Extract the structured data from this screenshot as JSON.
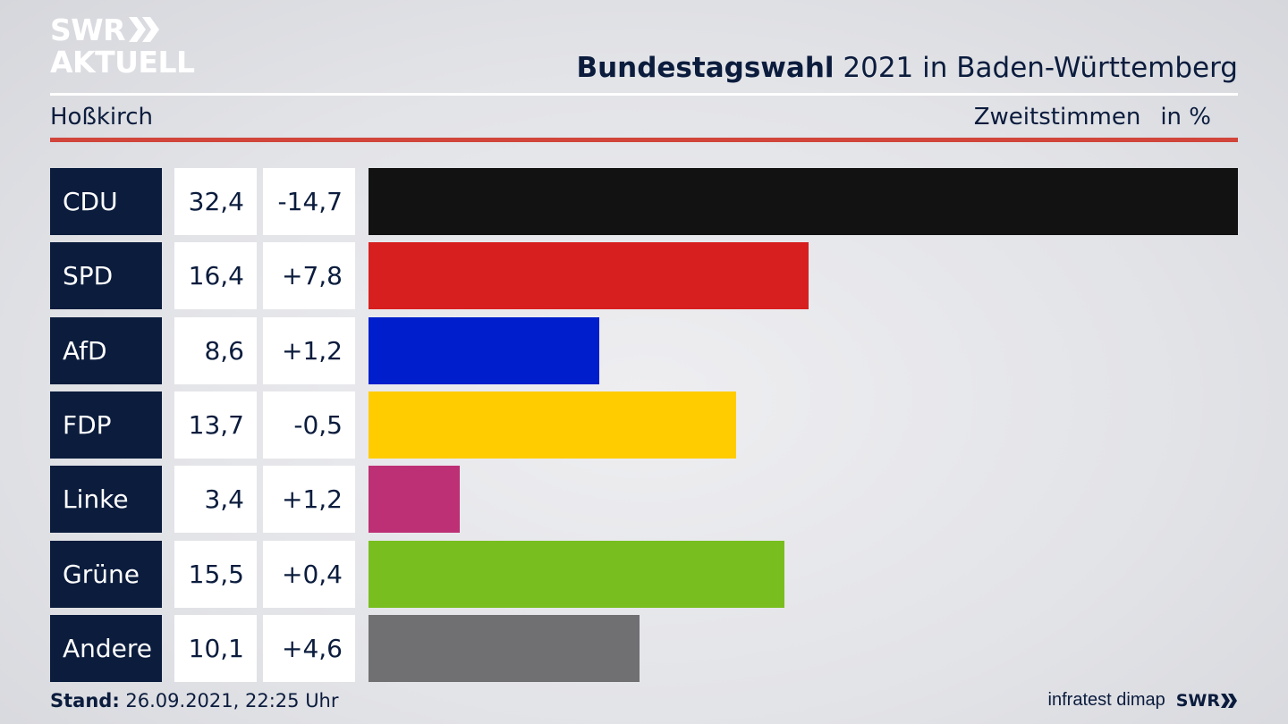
{
  "brand": {
    "logo_line1": "SWR",
    "logo_line2": "AKTUELL",
    "footer_logo": "SWR"
  },
  "header": {
    "title_bold": "Bundestagswahl",
    "title_rest": "2021 in Baden-Württemberg"
  },
  "subheader": {
    "location": "Hoßkirch",
    "measure": "Zweitstimmen",
    "unit": "in %"
  },
  "chart_data": {
    "type": "bar",
    "orientation": "horizontal",
    "categories": [
      "CDU",
      "SPD",
      "AfD",
      "FDP",
      "Linke",
      "Grüne",
      "Andere"
    ],
    "values": [
      32.4,
      16.4,
      8.6,
      13.7,
      3.4,
      15.5,
      10.1
    ],
    "value_labels": [
      "32,4",
      "16,4",
      "8,6",
      "13,7",
      "3,4",
      "15,5",
      "10,1"
    ],
    "change_labels": [
      "-14,7",
      "+7,8",
      "+1,2",
      "-0,5",
      "+1,2",
      "+0,4",
      "+4,6"
    ],
    "colors": [
      "#121212",
      "#d71f1f",
      "#001ecb",
      "#ffcc00",
      "#bd3075",
      "#78be1e",
      "#707073"
    ],
    "xlim": [
      0,
      32.4
    ]
  },
  "footer": {
    "stand_label": "Stand:",
    "stand_value": "26.09.2021, 22:25 Uhr",
    "source": "infratest dimap"
  }
}
